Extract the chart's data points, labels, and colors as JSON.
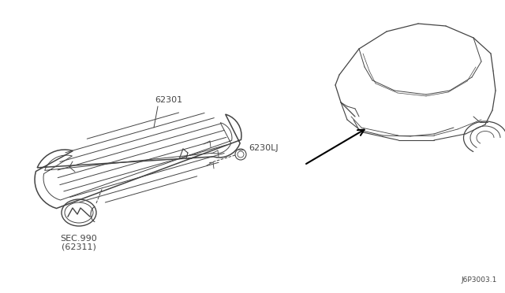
{
  "bg_color": "#ffffff",
  "line_color": "#444444",
  "text_color": "#444444",
  "diagram_id": "J6P3003.1",
  "labels": {
    "grille": "62301",
    "clip": "6230LJ",
    "emblem_line1": "SEC.990",
    "emblem_line2": "(62311)"
  }
}
